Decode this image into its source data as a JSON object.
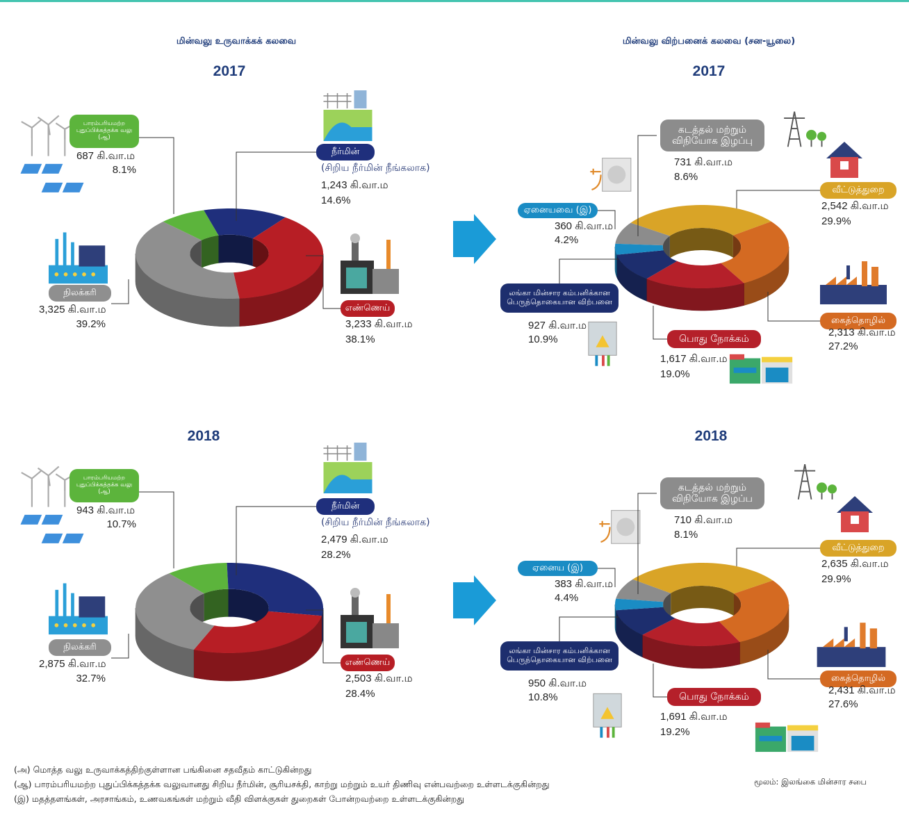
{
  "headings": {
    "generation": "மின்வலு உருவாக்கக் கலவை",
    "sales": "மின்வலு விற்பனைக் கலவை (சன-யூலை)"
  },
  "chart_data": [
    {
      "type": "donut",
      "title": "2017",
      "categories": [
        "பாரம்பரியமற்ற புதுப்பிக்கத்தக்க வலு (ஆ)",
        "நீர்மின்",
        "எண்ணெய்",
        "நிலக்கரி"
      ],
      "annotation": "(சிறிய நீர்மின் நீங்கலாக)",
      "values": [
        8.1,
        14.6,
        38.1,
        39.2
      ],
      "value_labels": [
        "8.1%",
        "14.6%",
        "38.1%",
        "39.2%"
      ],
      "amount_labels": [
        "687 கி.வா.ம",
        "1,243 கி.வா.ம",
        "3,233 கி.வா.ம",
        "3,325 கி.வா.ம"
      ],
      "colors": [
        "#5cb43c",
        "#1f2f7c",
        "#b71e25",
        "#8f8f8f"
      ]
    },
    {
      "type": "donut",
      "title": "2017",
      "categories": [
        "கடத்தல் மற்றும் விநியோக இழப்பு",
        "வீட்டுத்துறை",
        "கைத்தொழில்",
        "பொது நோக்கம்",
        "லங்கா மின்சார கம்பனிக்கான பெருந்தொகையான விற்பனை",
        "ஏனையவை (இ)"
      ],
      "values": [
        8.6,
        29.9,
        27.2,
        19.0,
        10.9,
        4.2
      ],
      "value_labels": [
        "8.6%",
        "29.9%",
        "27.2%",
        "19.0%",
        "10.9%",
        "4.2%"
      ],
      "amount_labels": [
        "731 கி.வா.ம",
        "2,542 கி.வா.ம",
        "2,313 கி.வா.ம",
        "1,617 கி.வா.ம",
        "927 கி.வா.ம",
        "360 கி.வா.ம"
      ],
      "colors": [
        "#8c8c8c",
        "#d9a427",
        "#d46a22",
        "#b5202a",
        "#1d2e6e",
        "#1a8cc4"
      ]
    },
    {
      "type": "donut",
      "title": "2018",
      "categories": [
        "பாரம்பரியமற்ற புதுப்பிக்கத்தக்க வலு (ஆ)",
        "நீர்மின்",
        "எண்ணெய்",
        "நிலக்கரி"
      ],
      "annotation": "(சிறிய நீர்மின் நீங்கலாக)",
      "values": [
        10.7,
        28.2,
        28.4,
        32.7
      ],
      "value_labels": [
        "10.7%",
        "28.2%",
        "28.4%",
        "32.7%"
      ],
      "amount_labels": [
        "943 கி.வா.ம",
        "2,479 கி.வா.ம",
        "2,503 கி.வா.ம",
        "2,875 கி.வா.ம"
      ],
      "colors": [
        "#5cb43c",
        "#1f2f7c",
        "#b71e25",
        "#8f8f8f"
      ]
    },
    {
      "type": "donut",
      "title": "2018",
      "categories": [
        "கடத்தல் மற்றும் விநியோக இழப்ப",
        "வீட்டுத்துறை",
        "கைத்தொழில்",
        "பொது நோக்கம்",
        "லங்கா மின்சார கம்பனிக்கான பெருந்தொகையான விற்பனை",
        "ஏனைய (இ)"
      ],
      "values": [
        8.1,
        29.9,
        27.6,
        19.2,
        10.8,
        4.4
      ],
      "value_labels": [
        "8.1%",
        "29.9%",
        "27.6%",
        "19.2%",
        "10.8%",
        "4.4%"
      ],
      "amount_labels": [
        "710 கி.வா.ம",
        "2,635 கி.வா.ம",
        "2,431 கி.வா.ம",
        "1,691 கி.வா.ம",
        "950 கி.வா.ம",
        "383 கி.வா.ம"
      ],
      "colors": [
        "#8c8c8c",
        "#d9a427",
        "#d46a22",
        "#b5202a",
        "#1d2e6e",
        "#1a8cc4"
      ]
    }
  ],
  "notes": [
    "(அ) மொத்த வலு உருவாக்கத்திற்குள்ளான பங்கினை சதவீதம் காட்டுகின்றது",
    "(ஆ) பாரம்பரியமற்ற புதுப்பிக்கத்தக்க வலுவானது சிறிய நீர்மின், சூரியசக்தி, காற்று மற்றும் உயர் திணிவு என்பவற்றை உள்ளடக்குகின்றது",
    "(இ) மதத்தளங்கள், அரசாங்கம், உணவகங்கள் மற்றும் வீதி விளக்குகள் துறைகள் போன்றவற்றை உள்ளடக்குகின்றது"
  ],
  "source": "மூலம்: இலங்கை மின்சார சபை"
}
